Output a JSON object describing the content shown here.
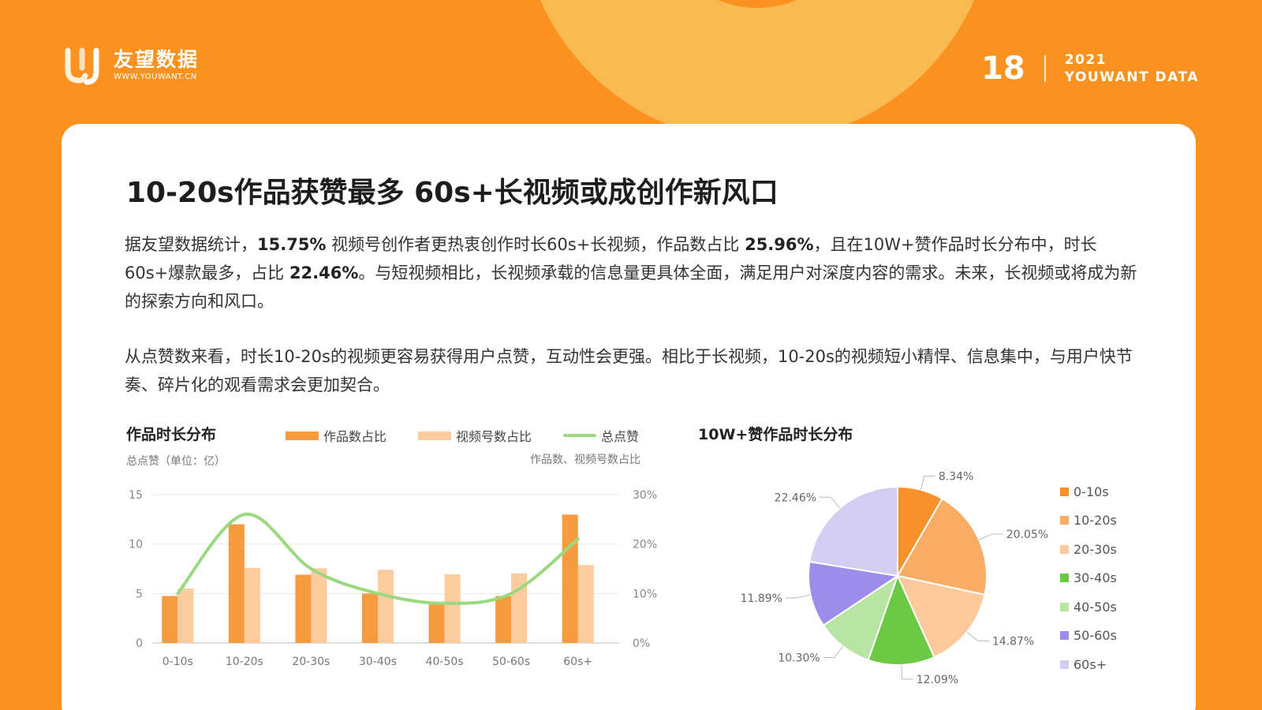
{
  "header": {
    "logo_name": "友望数据",
    "logo_url": "WWW.YOUWANT.CN",
    "page_number": "18",
    "year": "2021",
    "brand": "YOUWANT DATA"
  },
  "title": "10-20s作品获赞最多  60s+长视频或成创作新风口",
  "paragraph1": [
    {
      "t": "据友望数据统计，"
    },
    {
      "t": "15.75%",
      "b": true
    },
    {
      "t": " 视频号创作者更热衷创作时长60s+长视频，作品数占比 "
    },
    {
      "t": "25.96%",
      "b": true
    },
    {
      "t": "，且在10W+赞作品时长分布中，时长60s+爆款最多，占比 "
    },
    {
      "t": "22.46%",
      "b": true
    },
    {
      "t": "。与短视频相比，长视频承载的信息量更具体全面，满足用户对深度内容的需求。未来，长视频或将成为新的探索方向和风口。"
    }
  ],
  "paragraph2": "从点赞数来看，时长10-20s的视频更容易获得用户点赞，互动性会更强。相比于长视频，10-20s的视频短小精悍、信息集中，与用户快节奏、碎片化的观看需求会更加契合。",
  "chart_data": [
    {
      "type": "bar",
      "title": "作品时长分布",
      "left_axis_label": "总点赞（单位：亿）",
      "right_axis_label": "作品数、视频号数占比",
      "categories": [
        "0-10s",
        "10-20s",
        "20-30s",
        "30-40s",
        "40-50s",
        "50-60s",
        "60s+"
      ],
      "y_left": {
        "ticks": [
          "0",
          "5",
          "10",
          "15"
        ],
        "lim": [
          0,
          15
        ]
      },
      "y_right": {
        "ticks": [
          "0%",
          "10%",
          "20%",
          "30%"
        ],
        "lim": [
          0,
          30
        ]
      },
      "series": [
        {
          "name": "作品数占比",
          "type": "bar",
          "axis": "right",
          "color": "#F89A3E",
          "values": [
            9.5,
            24,
            13.8,
            10,
            7.8,
            9.5,
            25.96
          ]
        },
        {
          "name": "视频号数占比",
          "type": "bar",
          "axis": "right",
          "color": "#FCCB9E",
          "values": [
            11,
            15.2,
            15.1,
            14.8,
            13.9,
            14.1,
            15.75
          ]
        },
        {
          "name": "总点赞",
          "type": "line",
          "axis": "left",
          "color": "#9BD97F",
          "values": [
            5,
            13,
            7.5,
            5,
            4,
            5,
            10.5
          ]
        }
      ],
      "grid": true,
      "legend_position": "top"
    },
    {
      "type": "pie",
      "title": "10W+赞作品时长分布",
      "labels": [
        "0-10s",
        "10-20s",
        "20-30s",
        "30-40s",
        "40-50s",
        "50-60s",
        "60s+"
      ],
      "values": [
        8.34,
        20.05,
        14.87,
        12.09,
        10.3,
        11.89,
        22.46
      ],
      "value_labels": [
        "8.34%",
        "20.05%",
        "14.87%",
        "12.09%",
        "10.30%",
        "11.89%",
        "22.46%"
      ],
      "colors": [
        "#F7922A",
        "#F8AC64",
        "#FBC99A",
        "#6BC944",
        "#B7E6A2",
        "#9E8CEA",
        "#D3CDF4"
      ],
      "legend_position": "right"
    }
  ]
}
